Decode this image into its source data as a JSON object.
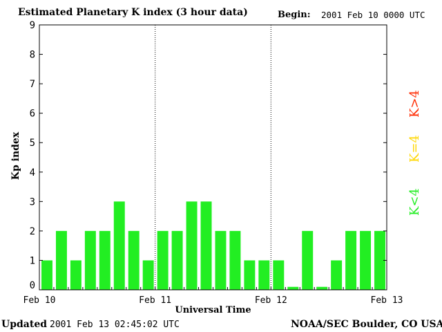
{
  "header": {
    "title": "Estimated Planetary K index (3 hour data)",
    "begin_label": "Begin:",
    "begin_value": "2001 Feb 10 0000 UTC"
  },
  "footer": {
    "updated_label": "Updated",
    "updated_value": "2001 Feb 13 02:45:02 UTC",
    "source": "NOAA/SEC Boulder, CO USA"
  },
  "legend": {
    "high": {
      "label": "K>4",
      "color": "#ff2a00"
    },
    "mid": {
      "label": "K=4",
      "color": "#ffd700"
    },
    "low": {
      "label": "K<4",
      "color": "#22ee22"
    }
  },
  "chart_data": {
    "type": "bar",
    "title": "Estimated Planetary K index (3 hour data)",
    "xlabel": "Universal Time",
    "ylabel": "Kp index",
    "ylim": [
      0,
      9
    ],
    "yticks": [
      0,
      1,
      2,
      3,
      4,
      5,
      6,
      7,
      8,
      9
    ],
    "xtick_labels": [
      "Feb 10",
      "Feb 11",
      "Feb 12",
      "Feb 13"
    ],
    "day_separators": [
      "Feb 11",
      "Feb 12"
    ],
    "bar_color": "#22ee22",
    "values": [
      1,
      2,
      1,
      2,
      2,
      3,
      2,
      1,
      2,
      2,
      3,
      3,
      2,
      2,
      1,
      1,
      1,
      0.1,
      2,
      0.1,
      1,
      2,
      2,
      2
    ]
  }
}
